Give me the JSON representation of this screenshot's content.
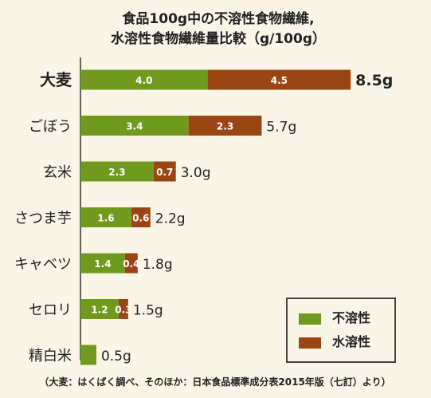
{
  "chart_data": {
    "type": "bar",
    "stacked": true,
    "orientation": "horizontal",
    "title_lines": [
      "食品100g中の不溶性食物繊維,",
      "水溶性食物繊維量比較（g/100g）"
    ],
    "categories": [
      "大麦",
      "ごぼう",
      "玄米",
      "さつま芋",
      "キャベツ",
      "セロリ",
      "精白米"
    ],
    "series": [
      {
        "name": "不溶性",
        "color": "#6f9a1d",
        "values": [
          4.0,
          3.4,
          2.3,
          1.6,
          1.4,
          1.2,
          0.5
        ]
      },
      {
        "name": "水溶性",
        "color": "#9a4514",
        "values": [
          4.5,
          2.3,
          0.7,
          0.6,
          0.4,
          0.3,
          0
        ]
      }
    ],
    "segment_labels": [
      [
        "4.0",
        "4.5"
      ],
      [
        "3.4",
        "2.3"
      ],
      [
        "2.3",
        "0.7"
      ],
      [
        "1.6",
        "0.6"
      ],
      [
        "1.4",
        "0.4"
      ],
      [
        "1.2",
        "0.3"
      ],
      [
        "",
        ""
      ]
    ],
    "totals": [
      "8.5g",
      "5.7g",
      "3.0g",
      "2.2g",
      "1.8g",
      "1.5g",
      "0.5g"
    ],
    "highlight_category": "大麦",
    "footnote": "（大麦：はくばく調べ、そのほか：日本食品標準成分表2015年版（七訂）より）",
    "legend_position": "bottom-right",
    "grid": false
  }
}
